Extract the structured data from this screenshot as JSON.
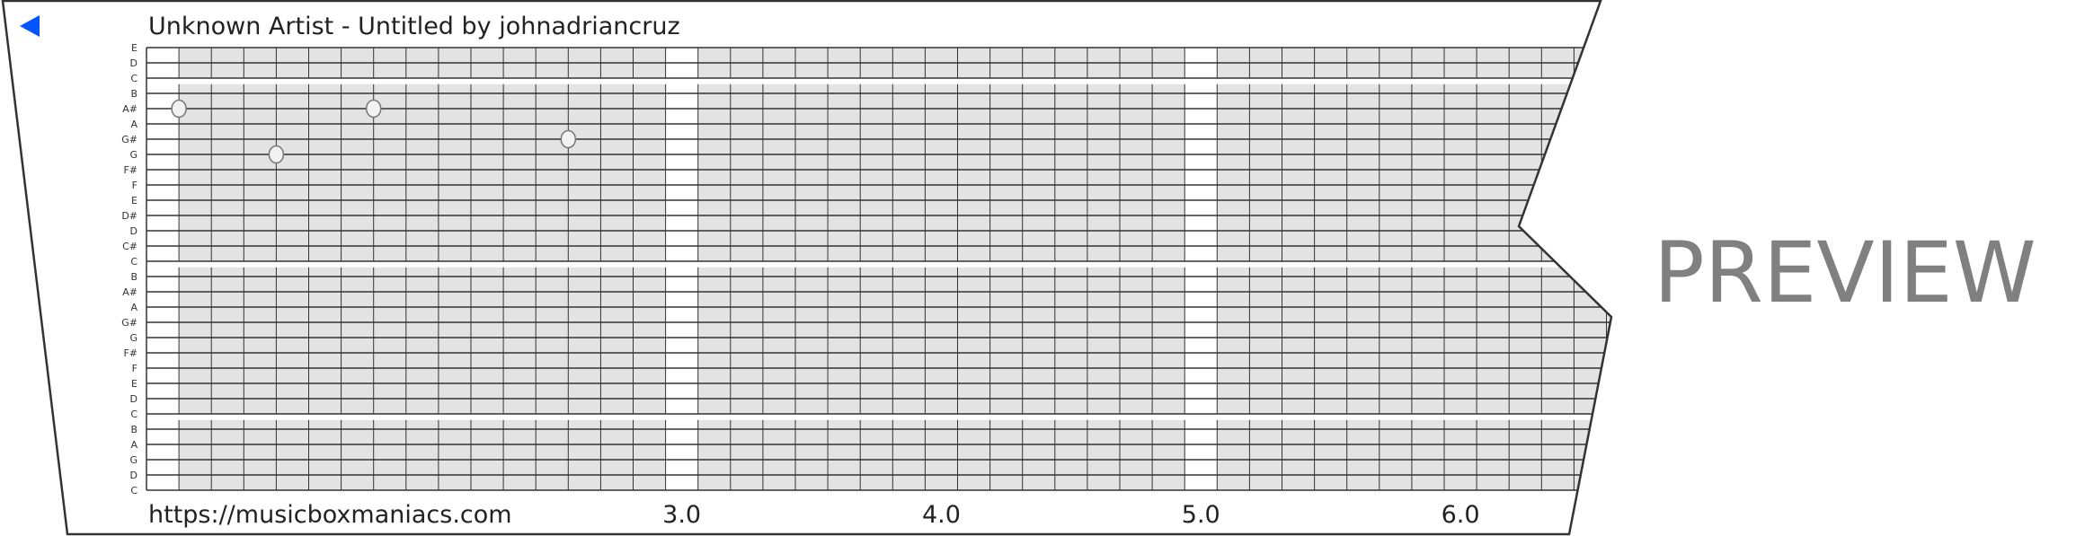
{
  "header": {
    "title": "Unknown Artist - Untitled by johnadriancruz",
    "back_icon": "blue-left-triangle-icon",
    "accent_color": "#0055ff"
  },
  "strip": {
    "note_labels": [
      "E",
      "D",
      "C",
      "B",
      "A#",
      "A",
      "G#",
      "G",
      "F#",
      "F",
      "E",
      "D#",
      "D",
      "C#",
      "C",
      "B",
      "A#",
      "A",
      "G#",
      "G",
      "F#",
      "F",
      "E",
      "D",
      "C",
      "B",
      "A",
      "G",
      "D",
      "C"
    ],
    "notes": [
      {
        "note": "A#",
        "row": 4,
        "beat_column": 1
      },
      {
        "note": "G",
        "row": 7,
        "beat_column": 4
      },
      {
        "note": "A#",
        "row": 4,
        "beat_column": 7
      },
      {
        "note": "G#",
        "row": 6,
        "beat_column": 13
      }
    ],
    "grid_fill_color": "#e3e3e3",
    "grid_line_color": "#333333"
  },
  "footer": {
    "url": "https://musicboxmaniacs.com",
    "beat_labels": [
      {
        "label": "3.0",
        "column": 16
      },
      {
        "label": "4.0",
        "column": 24
      },
      {
        "label": "5.0",
        "column": 32
      },
      {
        "label": "6.0",
        "column": 40
      }
    ]
  },
  "watermark": {
    "text": "PREVIEW",
    "color": "#808080"
  }
}
